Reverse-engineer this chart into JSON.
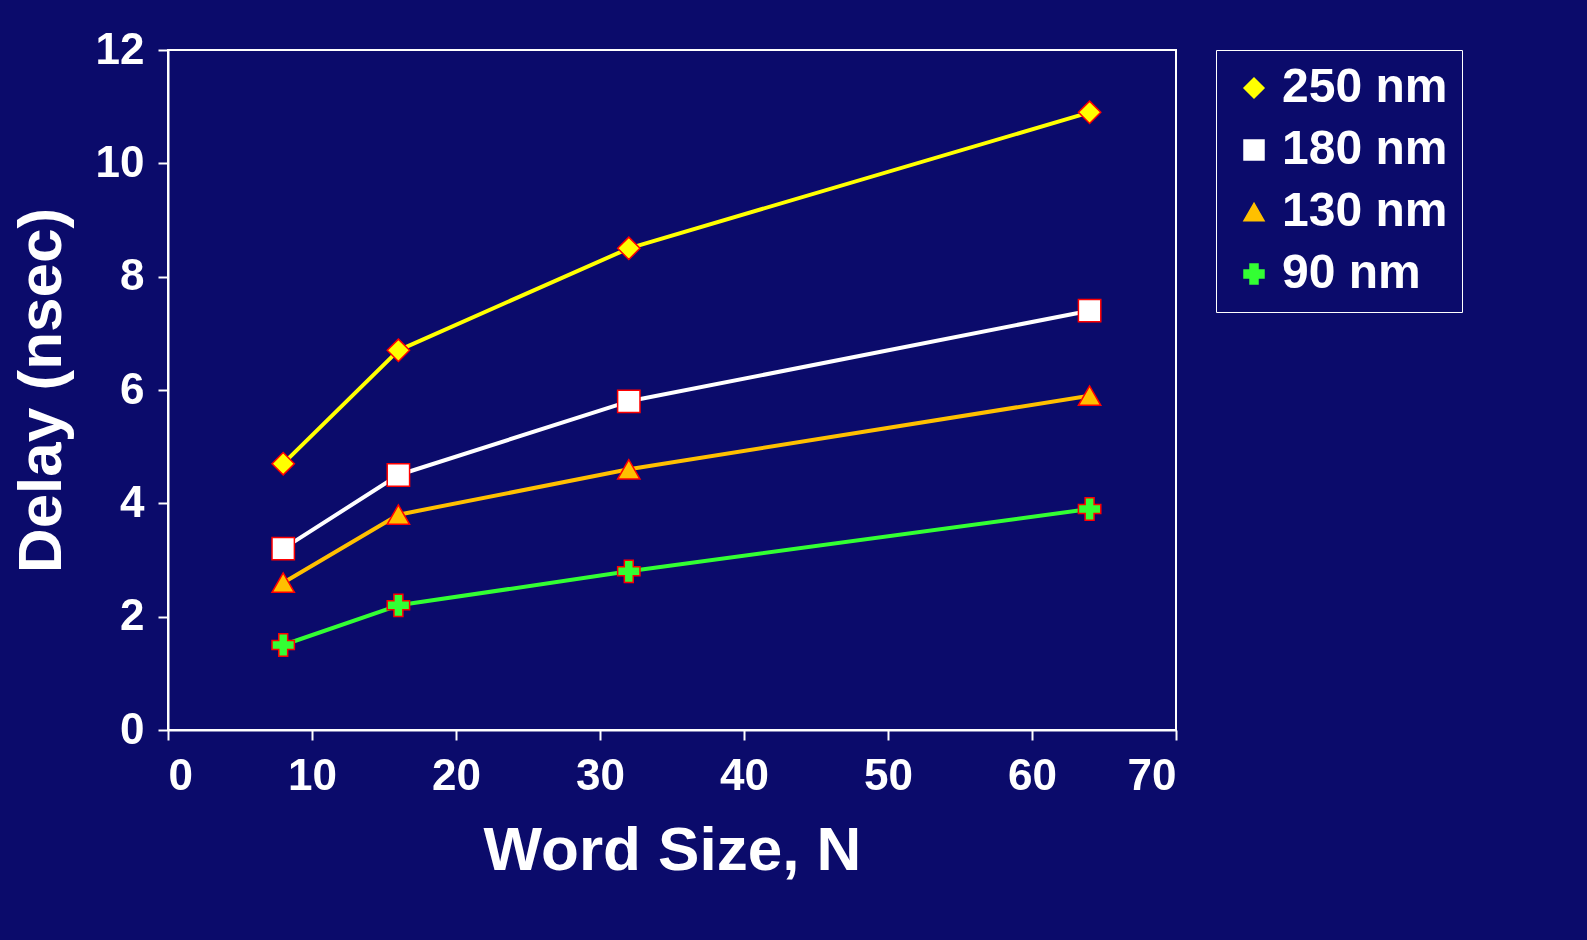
{
  "chart_data": {
    "type": "line",
    "xlabel": "Word Size, N",
    "ylabel": "Delay (nsec)",
    "x": [
      8,
      16,
      32,
      64
    ],
    "xlim": [
      0,
      70
    ],
    "xticks": [
      0,
      10,
      20,
      30,
      40,
      50,
      60,
      70
    ],
    "ylim": [
      0,
      12
    ],
    "yticks": [
      0,
      2,
      4,
      6,
      8,
      10,
      12
    ],
    "grid": false,
    "legend": "right",
    "series": [
      {
        "name": "250 nm",
        "color": "#ffff00",
        "marker": "diamond",
        "values": [
          4.7,
          6.7,
          8.5,
          10.9
        ]
      },
      {
        "name": "180 nm",
        "color": "#ffffff",
        "marker": "square",
        "values": [
          3.2,
          4.5,
          5.8,
          7.4
        ]
      },
      {
        "name": "130 nm",
        "color": "#ffc000",
        "marker": "triangle",
        "values": [
          2.6,
          3.8,
          4.6,
          5.9
        ]
      },
      {
        "name": "90 nm",
        "color": "#33ff33",
        "marker": "cross",
        "values": [
          1.5,
          2.2,
          2.8,
          3.9
        ]
      }
    ]
  }
}
